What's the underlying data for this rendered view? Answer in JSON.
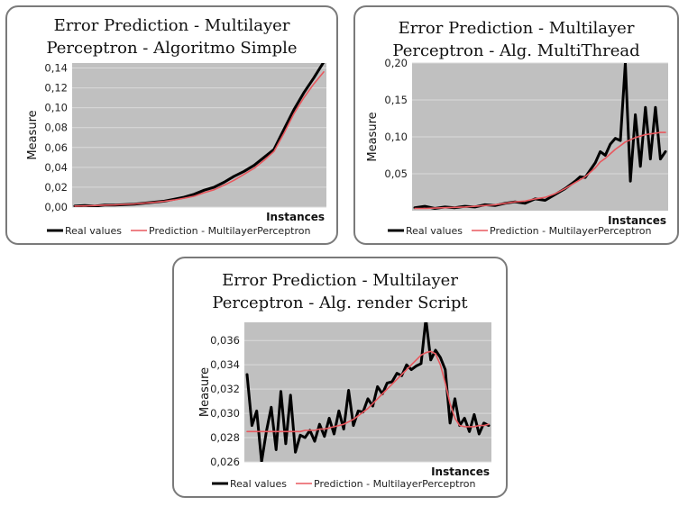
{
  "chart_data": [
    {
      "type": "line",
      "title_lines": [
        "Error Prediction - Multilayer",
        "Perceptron - Algoritmo Simple"
      ],
      "xlabel": "Instances",
      "ylabel": "Measure",
      "ylim": [
        0,
        0.145
      ],
      "yticks": [
        "0,00",
        "0,02",
        "0,04",
        "0,06",
        "0,08",
        "0,10",
        "0,12",
        "0,14"
      ],
      "grid": true,
      "legend_position": "bottom",
      "x": [
        0,
        4,
        8,
        12,
        16,
        20,
        24,
        28,
        32,
        36,
        40,
        44,
        48,
        52,
        56,
        60,
        64,
        68,
        72,
        76,
        80,
        84,
        88,
        92,
        96,
        100
      ],
      "series": [
        {
          "name": "Real values",
          "color": "#000000",
          "values": [
            0.001,
            0.0015,
            0.001,
            0.002,
            0.002,
            0.0025,
            0.003,
            0.004,
            0.005,
            0.006,
            0.008,
            0.01,
            0.013,
            0.017,
            0.02,
            0.025,
            0.031,
            0.036,
            0.042,
            0.05,
            0.058,
            0.078,
            0.098,
            0.115,
            0.13,
            0.146
          ]
        },
        {
          "name": "Prediction - MultilayerPerceptron",
          "color": "#e8585e",
          "values": [
            0.001,
            0.0012,
            0.0015,
            0.002,
            0.0022,
            0.0027,
            0.0032,
            0.004,
            0.0048,
            0.0058,
            0.0072,
            0.009,
            0.011,
            0.0145,
            0.0175,
            0.022,
            0.027,
            0.033,
            0.039,
            0.047,
            0.056,
            0.074,
            0.094,
            0.11,
            0.124,
            0.136
          ]
        }
      ]
    },
    {
      "type": "line",
      "title_lines": [
        "Error Prediction - Multilayer",
        "Perceptron - Alg. MultiThread"
      ],
      "xlabel": "Instances",
      "ylabel": "Measure",
      "ylim": [
        0,
        0.2
      ],
      "yticks": [
        "0,05",
        "0,10",
        "0,15",
        "0,20"
      ],
      "grid": true,
      "legend_position": "bottom",
      "x": [
        0,
        4,
        8,
        12,
        16,
        20,
        24,
        28,
        32,
        36,
        40,
        44,
        48,
        52,
        56,
        60,
        64,
        66,
        68,
        70,
        72,
        74,
        76,
        78,
        80,
        82,
        84,
        86,
        88,
        90,
        92,
        94,
        96,
        98,
        100
      ],
      "series": [
        {
          "name": "Real values",
          "color": "#000000",
          "values": [
            0.004,
            0.006,
            0.003,
            0.005,
            0.004,
            0.006,
            0.005,
            0.008,
            0.007,
            0.01,
            0.012,
            0.01,
            0.016,
            0.014,
            0.022,
            0.03,
            0.04,
            0.046,
            0.045,
            0.055,
            0.065,
            0.08,
            0.075,
            0.09,
            0.098,
            0.095,
            0.2,
            0.04,
            0.13,
            0.06,
            0.14,
            0.07,
            0.14,
            0.07,
            0.08
          ]
        },
        {
          "name": "Prediction - MultilayerPerceptron",
          "color": "#e8585e",
          "values": [
            0.003,
            0.003,
            0.0035,
            0.004,
            0.0045,
            0.005,
            0.006,
            0.007,
            0.008,
            0.01,
            0.012,
            0.013,
            0.016,
            0.018,
            0.023,
            0.03,
            0.038,
            0.042,
            0.046,
            0.052,
            0.058,
            0.066,
            0.071,
            0.077,
            0.083,
            0.088,
            0.093,
            0.096,
            0.099,
            0.101,
            0.103,
            0.104,
            0.105,
            0.106,
            0.106
          ]
        }
      ]
    },
    {
      "type": "line",
      "title_lines": [
        "Error Prediction - Multilayer",
        "Perceptron - Alg. render Script"
      ],
      "xlabel": "Instances",
      "ylabel": "Measure",
      "ylim": [
        0.026,
        0.0375
      ],
      "yticks": [
        "0,026",
        "0,028",
        "0,030",
        "0,032",
        "0,034",
        "0,036"
      ],
      "grid": true,
      "legend_position": "bottom",
      "x": [
        0,
        2,
        4,
        6,
        8,
        10,
        12,
        14,
        16,
        18,
        20,
        22,
        24,
        26,
        28,
        30,
        32,
        34,
        36,
        38,
        40,
        42,
        44,
        46,
        48,
        50,
        52,
        54,
        56,
        58,
        60,
        62,
        64,
        66,
        68,
        70,
        72,
        74,
        76,
        78,
        80,
        82,
        84,
        86,
        88,
        90,
        92,
        94,
        96,
        98,
        100
      ],
      "series": [
        {
          "name": "Real values",
          "color": "#000000",
          "values": [
            0.0332,
            0.029,
            0.0302,
            0.026,
            0.0285,
            0.0305,
            0.027,
            0.0318,
            0.0275,
            0.0315,
            0.0268,
            0.0282,
            0.028,
            0.0286,
            0.0277,
            0.0291,
            0.0281,
            0.0296,
            0.0283,
            0.0302,
            0.0287,
            0.0319,
            0.029,
            0.0302,
            0.0301,
            0.0312,
            0.0306,
            0.0322,
            0.0316,
            0.0325,
            0.0326,
            0.0333,
            0.0331,
            0.034,
            0.0336,
            0.0339,
            0.0341,
            0.0378,
            0.0344,
            0.0352,
            0.0346,
            0.0336,
            0.0292,
            0.0312,
            0.029,
            0.0296,
            0.0285,
            0.0299,
            0.0283,
            0.0292,
            0.029
          ]
        },
        {
          "name": "Prediction - MultilayerPerceptron",
          "color": "#e8585e",
          "values": [
            0.0285,
            0.0285,
            0.0285,
            0.0285,
            0.0285,
            0.0285,
            0.0285,
            0.0285,
            0.0285,
            0.0285,
            0.0285,
            0.0285,
            0.0286,
            0.0286,
            0.0286,
            0.0287,
            0.0287,
            0.0288,
            0.0289,
            0.029,
            0.0291,
            0.0293,
            0.0295,
            0.0298,
            0.0301,
            0.0304,
            0.0308,
            0.0312,
            0.0316,
            0.032,
            0.0324,
            0.0328,
            0.0332,
            0.0336,
            0.034,
            0.0344,
            0.0348,
            0.035,
            0.0351,
            0.0349,
            0.034,
            0.0325,
            0.0308,
            0.0296,
            0.029,
            0.0289,
            0.0289,
            0.0289,
            0.029,
            0.029,
            0.0291
          ]
        }
      ]
    }
  ]
}
